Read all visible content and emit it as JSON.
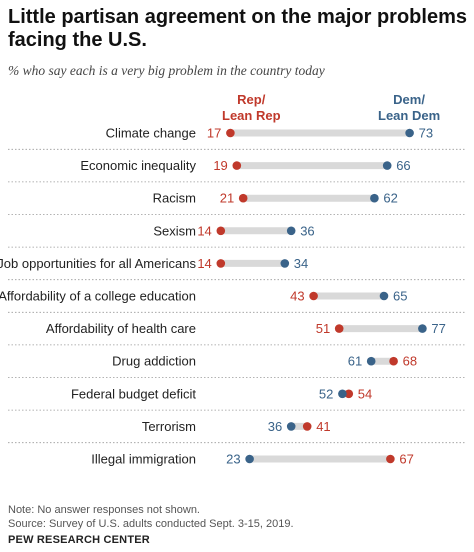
{
  "header": {
    "title": "Little partisan agreement on the major problems facing the U.S.",
    "subtitle": "% who say each is a very big problem in the country today"
  },
  "legend": {
    "rep_line1": "Rep/",
    "rep_line2": "Lean Rep",
    "dem_line1": "Dem/",
    "dem_line2": "Lean Dem"
  },
  "colors": {
    "rep": "#c0392b",
    "dem": "#3a6389",
    "connector": "#d9d9d9",
    "row_divider": "#9a9a9a"
  },
  "chart_data": {
    "type": "dot-plot",
    "title": "Little partisan agreement on the major problems facing the U.S.",
    "subtitle": "% who say each is a very big problem in the country today",
    "categories": [
      "Climate change",
      "Economic inequality",
      "Racism",
      "Sexism",
      "Job opportunities for all Americans",
      "Affordability of a college education",
      "Affordability of health care",
      "Drug addiction",
      "Federal budget deficit",
      "Terrorism",
      "Illegal immigration"
    ],
    "series": [
      {
        "name": "Rep/Lean Rep",
        "values": [
          17,
          19,
          21,
          14,
          14,
          43,
          51,
          68,
          54,
          41,
          67
        ]
      },
      {
        "name": "Dem/Lean Dem",
        "values": [
          73,
          66,
          62,
          36,
          34,
          65,
          77,
          61,
          52,
          36,
          23
        ]
      }
    ]
  },
  "footer": {
    "note": "Note: No answer responses not shown.",
    "source": "Source: Survey of U.S. adults conducted Sept. 3-15, 2019.",
    "org": "PEW RESEARCH CENTER"
  }
}
